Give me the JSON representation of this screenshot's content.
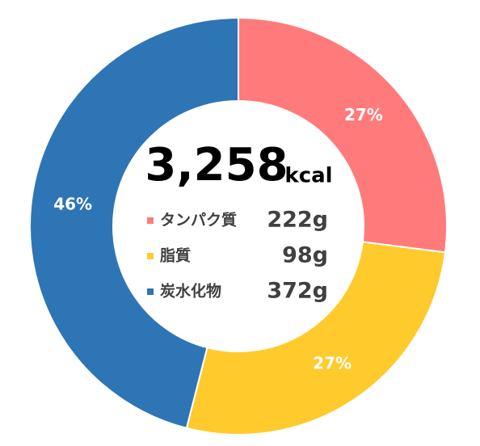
{
  "chart_data": {
    "type": "donut",
    "categories": [
      "タンパク質",
      "脂質",
      "炭水化物"
    ],
    "values": [
      27,
      27,
      46
    ],
    "value_labels": [
      "27%",
      "27%",
      "46%"
    ],
    "colors": [
      "#ff7b7b",
      "#ffca2c",
      "#2e75b6"
    ],
    "amounts": [
      "222g",
      "98g",
      "372g"
    ],
    "center_total": "3,258",
    "center_unit": "kcal"
  }
}
